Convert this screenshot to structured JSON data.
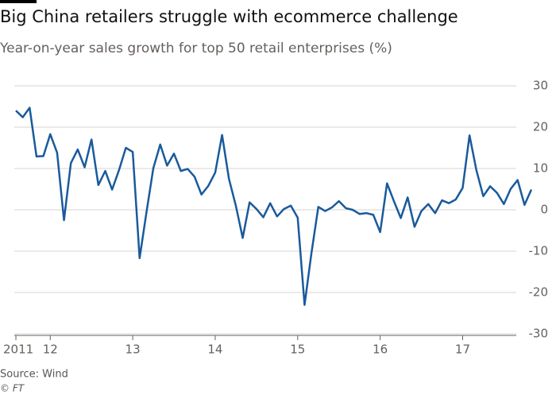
{
  "chart_data": {
    "type": "line",
    "title": "Big China retailers struggle with ecommerce challenge",
    "subtitle": "Year-on-year sales growth for top 50 retail enterprises (%)",
    "source": "Source: Wind",
    "credit": "© FT",
    "categories": [
      "2011",
      null,
      null,
      null,
      null,
      "12",
      null,
      null,
      null,
      null,
      null,
      null,
      null,
      null,
      null,
      null,
      null,
      "13",
      null,
      null,
      null,
      null,
      null,
      null,
      null,
      null,
      null,
      null,
      null,
      "14",
      null,
      null,
      null,
      null,
      null,
      null,
      null,
      null,
      null,
      null,
      null,
      "15",
      null,
      null,
      null,
      null,
      null,
      null,
      null,
      null,
      null,
      null,
      null,
      "16",
      null,
      null,
      null,
      null,
      null,
      null,
      null,
      null,
      null,
      null,
      null,
      "17",
      null,
      null,
      null,
      null,
      null,
      null,
      null,
      null,
      null,
      null
    ],
    "series": [
      {
        "name": "Sales growth",
        "color": "#1a5a9c",
        "values": [
          24,
          22.4,
          24.7,
          12.9,
          13,
          18.3,
          13.8,
          -2.5,
          11.3,
          14.6,
          10.3,
          17,
          6,
          9.4,
          4.9,
          9.6,
          15,
          14,
          -11.7,
          -0.6,
          10.1,
          15.8,
          10.7,
          13.6,
          9.4,
          9.9,
          8,
          3.7,
          5.8,
          9,
          18.1,
          7.5,
          1,
          -6.8,
          1.8,
          0.2,
          -1.8,
          1.6,
          -1.6,
          0.2,
          1,
          -1.9,
          -23,
          -10.5,
          0.7,
          -0.3,
          0.6,
          2.1,
          0.4,
          0,
          -1,
          -0.8,
          -1.2,
          -5.4,
          6.4,
          2.1,
          -2,
          3,
          -4.1,
          -0.3,
          1.4,
          -0.8,
          2.3,
          1.6,
          2.5,
          5.3,
          18,
          9.6,
          3.3,
          5.7,
          4.1,
          1.4,
          5.1,
          7.2,
          1.2,
          4.9
        ]
      }
    ],
    "ylim": [
      -30,
      30
    ],
    "yticks": [
      -30,
      -20,
      -10,
      0,
      10,
      20,
      30
    ],
    "grid": true
  }
}
